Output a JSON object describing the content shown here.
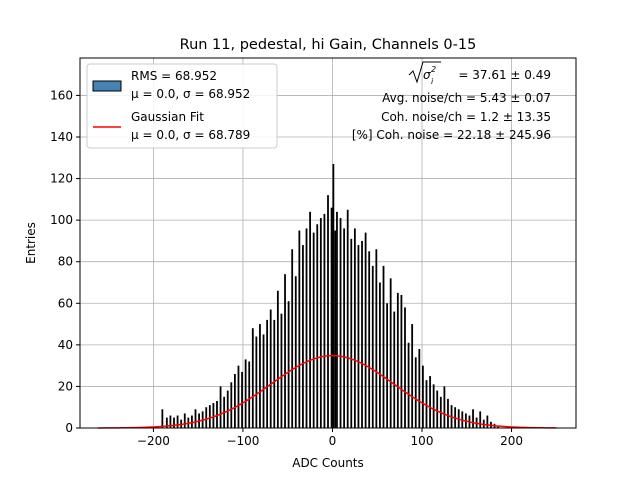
{
  "chart_data": {
    "type": "bar",
    "title": "Run 11, pedestal, hi Gain, Channels 0-15",
    "xlabel": "ADC Counts",
    "ylabel": "Entries",
    "xlim": [
      -282,
      272
    ],
    "ylim": [
      0,
      178
    ],
    "xticks": [
      -200,
      -100,
      0,
      100,
      200
    ],
    "yticks": [
      0,
      20,
      40,
      60,
      80,
      100,
      120,
      140,
      160
    ],
    "grid": true,
    "legend_position": "top-left",
    "bin_width": 2,
    "legend": [
      {
        "line1": "RMS = 68.952",
        "line2": "μ = 0.0, σ = 68.952"
      },
      {
        "line1": "Gaussian Fit",
        "line2": "μ = 0.0, σ = 68.789"
      }
    ],
    "annotations": {
      "sigma_label": "= 37.61 ± 0.49",
      "avg_noise": "Avg. noise/ch = 5.43 ± 0.07",
      "coh_noise": "Coh. noise/ch = 1.2 ± 13.35",
      "pct_coh_noise": "[%] Coh. noise = 22.18 ± 245.96"
    },
    "series": [
      {
        "name": "RMS = 68.952",
        "kind": "histogram",
        "color": "#000000",
        "points": [
          [
            -190,
            9
          ],
          [
            -185,
            5
          ],
          [
            -181,
            6
          ],
          [
            -177,
            5
          ],
          [
            -173,
            6
          ],
          [
            -169,
            4
          ],
          [
            -165,
            7
          ],
          [
            -161,
            5
          ],
          [
            -157,
            6
          ],
          [
            -153,
            9
          ],
          [
            -149,
            7
          ],
          [
            -145,
            8
          ],
          [
            -141,
            10
          ],
          [
            -137,
            11
          ],
          [
            -133,
            12
          ],
          [
            -129,
            13
          ],
          [
            -125,
            20
          ],
          [
            -121,
            15
          ],
          [
            -117,
            18
          ],
          [
            -113,
            22
          ],
          [
            -109,
            26
          ],
          [
            -105,
            30
          ],
          [
            -101,
            27
          ],
          [
            -97,
            33
          ],
          [
            -93,
            32
          ],
          [
            -89,
            48
          ],
          [
            -85,
            44
          ],
          [
            -81,
            50
          ],
          [
            -77,
            45
          ],
          [
            -73,
            52
          ],
          [
            -69,
            57
          ],
          [
            -65,
            52
          ],
          [
            -61,
            66
          ],
          [
            -57,
            55
          ],
          [
            -53,
            74
          ],
          [
            -49,
            61
          ],
          [
            -45,
            86
          ],
          [
            -41,
            73
          ],
          [
            -37,
            95
          ],
          [
            -33,
            88
          ],
          [
            -29,
            96
          ],
          [
            -25,
            104
          ],
          [
            -21,
            94
          ],
          [
            -17,
            98
          ],
          [
            -13,
            101
          ],
          [
            -9,
            103
          ],
          [
            -5,
            112
          ],
          [
            -1,
            106
          ],
          [
            1,
            127
          ],
          [
            3,
            95
          ],
          [
            5,
            104
          ],
          [
            9,
            101
          ],
          [
            13,
            96
          ],
          [
            17,
            105
          ],
          [
            21,
            91
          ],
          [
            25,
            96
          ],
          [
            29,
            88
          ],
          [
            33,
            90
          ],
          [
            37,
            94
          ],
          [
            41,
            85
          ],
          [
            45,
            78
          ],
          [
            49,
            86
          ],
          [
            53,
            70
          ],
          [
            57,
            78
          ],
          [
            61,
            60
          ],
          [
            65,
            72
          ],
          [
            69,
            56
          ],
          [
            73,
            65
          ],
          [
            77,
            64
          ],
          [
            81,
            58
          ],
          [
            85,
            41
          ],
          [
            89,
            50
          ],
          [
            93,
            34
          ],
          [
            97,
            38
          ],
          [
            101,
            30
          ],
          [
            105,
            23
          ],
          [
            109,
            25
          ],
          [
            113,
            21
          ],
          [
            117,
            18
          ],
          [
            121,
            15
          ],
          [
            125,
            20
          ],
          [
            129,
            14
          ],
          [
            133,
            11
          ],
          [
            137,
            10
          ],
          [
            141,
            9
          ],
          [
            145,
            8
          ],
          [
            149,
            7
          ],
          [
            153,
            6
          ],
          [
            157,
            9
          ],
          [
            161,
            5
          ],
          [
            165,
            8
          ],
          [
            169,
            4
          ],
          [
            173,
            6
          ],
          [
            177,
            3
          ],
          [
            181,
            2
          ],
          [
            185,
            1
          ]
        ]
      },
      {
        "name": "Gaussian Fit",
        "kind": "gaussian",
        "color": "#ff0000",
        "amplitude": 34.8,
        "mu": 0.0,
        "sigma": 68.789,
        "x_range": [
          -262,
          250
        ]
      }
    ]
  }
}
